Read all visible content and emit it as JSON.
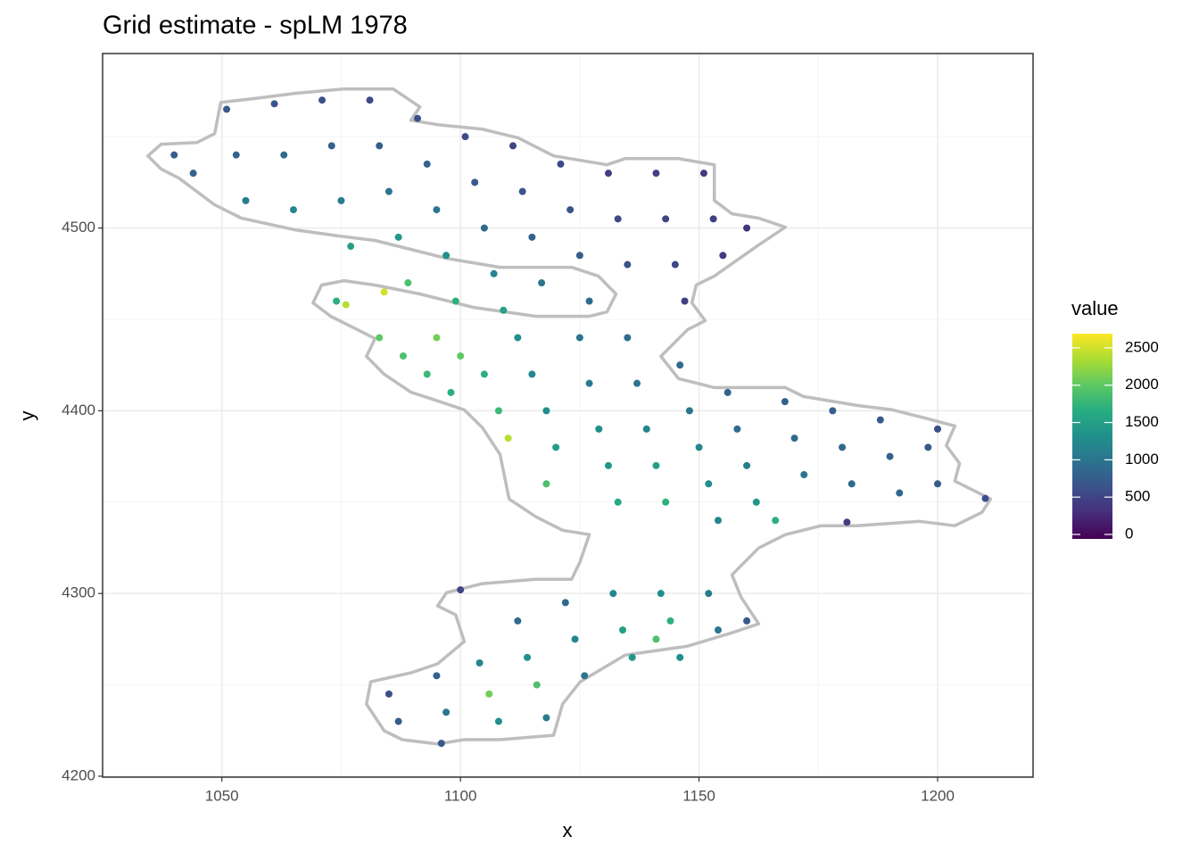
{
  "chart_data": {
    "type": "scatter",
    "title": "Grid estimate - spLM 1978",
    "x_label": "x",
    "y_label": "y",
    "xlim": [
      1025,
      1220
    ],
    "ylim": [
      4199.5,
      4595.5
    ],
    "xticks": [
      1050,
      1100,
      1150,
      1200
    ],
    "yticks": [
      4200,
      4300,
      4400,
      4500
    ],
    "grid": true,
    "outline_color": "#bebebe",
    "outline": {
      "x": [
        1049.8,
        1057.9,
        1065.3,
        1075.6,
        1085.9,
        1091.5,
        1089.6,
        1095.2,
        1104.6,
        1112.1,
        1119.5,
        1130.7,
        1134.5,
        1145.7,
        1153.2,
        1153.2,
        1156.9,
        1162.5,
        1168.1,
        1162.5,
        1153.2,
        1149.4,
        1148.5,
        1151.3,
        1147.6,
        1142.0,
        1145.7,
        1153.2,
        1168.1,
        1171.9,
        1183.1,
        1190.6,
        1198.0,
        1203.6,
        1201.8,
        1204.6,
        1203.6,
        1209.3,
        1211.1,
        1209.3,
        1203.6,
        1196.2,
        1183.1,
        1175.6,
        1168.1,
        1162.5,
        1156.9,
        1158.8,
        1162.5,
        1156.9,
        1147.6,
        1134.5,
        1125.1,
        1121.4,
        1119.5,
        1108.3,
        1100.8,
        1095.2,
        1087.8,
        1084.0,
        1080.3,
        1081.2,
        1089.6,
        1095.2,
        1100.8,
        1099.0,
        1095.2,
        1097.1,
        1104.6,
        1115.8,
        1123.3,
        1125.1,
        1127.0,
        1121.4,
        1115.8,
        1110.2,
        1108.3,
        1104.6,
        1100.8,
        1095.2,
        1089.6,
        1084.0,
        1080.3,
        1082.1,
        1078.4,
        1072.8,
        1069.1,
        1070.9,
        1075.6,
        1082.1,
        1091.5,
        1102.7,
        1115.8,
        1127.0,
        1130.7,
        1132.6,
        1128.9,
        1123.3,
        1108.3,
        1097.1,
        1089.6,
        1082.1,
        1074.7,
        1065.3,
        1054.1,
        1048.5,
        1041.0,
        1037.3,
        1034.5,
        1037.3,
        1044.8,
        1048.5,
        1049.4
      ],
      "y": [
        4568.8,
        4571.2,
        4573.7,
        4576.1,
        4576.1,
        4566.3,
        4559.0,
        4556.6,
        4554.1,
        4549.3,
        4539.5,
        4534.6,
        4538.0,
        4538.0,
        4534.6,
        4515.1,
        4507.8,
        4505.4,
        4500.5,
        4490.7,
        4473.7,
        4468.8,
        4459.0,
        4449.3,
        4444.4,
        4429.8,
        4417.6,
        4412.7,
        4412.7,
        4407.8,
        4402.9,
        4400.5,
        4395.6,
        4391.7,
        4381.0,
        4371.2,
        4361.5,
        4354.1,
        4351.7,
        4344.4,
        4337.1,
        4339.5,
        4337.1,
        4337.1,
        4332.2,
        4324.9,
        4310.2,
        4298.0,
        4283.4,
        4278.5,
        4271.2,
        4266.3,
        4251.7,
        4239.5,
        4222.4,
        4220.0,
        4220.0,
        4217.6,
        4220.0,
        4224.9,
        4239.5,
        4251.7,
        4256.6,
        4261.5,
        4273.7,
        4288.3,
        4293.2,
        4300.5,
        4305.4,
        4307.8,
        4307.8,
        4317.6,
        4332.2,
        4334.6,
        4342.0,
        4351.7,
        4376.1,
        4390.7,
        4400.5,
        4405.4,
        4410.2,
        4420.0,
        4429.8,
        4439.5,
        4444.4,
        4451.7,
        4459.0,
        4468.8,
        4471.2,
        4468.8,
        4463.9,
        4456.6,
        4451.7,
        4451.7,
        4454.1,
        4463.9,
        4473.7,
        4478.5,
        4478.5,
        4483.4,
        4488.3,
        4493.2,
        4495.6,
        4499.0,
        4505.4,
        4512.7,
        4527.3,
        4532.2,
        4539.5,
        4545.9,
        4546.8,
        4551.7,
        4563.9
      ]
    },
    "x": [
      1051,
      1053,
      1055,
      1061,
      1063,
      1065,
      1071,
      1073,
      1075,
      1077,
      1081,
      1083,
      1085,
      1087,
      1089,
      1091,
      1093,
      1095,
      1097,
      1099,
      1101,
      1103,
      1105,
      1107,
      1109,
      1111,
      1113,
      1115,
      1117,
      1121,
      1123,
      1125,
      1127,
      1131,
      1133,
      1135,
      1141,
      1143,
      1145,
      1147,
      1151,
      1153,
      1155,
      1160,
      1040,
      1044,
      1074,
      1076,
      1084,
      1083,
      1088,
      1093,
      1098,
      1095,
      1100,
      1105,
      1108,
      1110,
      1112,
      1115,
      1118,
      1120,
      1118,
      1125,
      1127,
      1129,
      1131,
      1133,
      1135,
      1137,
      1139,
      1141,
      1143,
      1146,
      1148,
      1150,
      1152,
      1154,
      1156,
      1158,
      1160,
      1162,
      1166,
      1168,
      1170,
      1172,
      1178,
      1180,
      1182,
      1181,
      1188,
      1190,
      1192,
      1198,
      1200,
      1210,
      1200,
      1085,
      1087,
      1095,
      1097,
      1096,
      1104,
      1106,
      1108,
      1112,
      1114,
      1116,
      1118,
      1100,
      1122,
      1124,
      1126,
      1132,
      1134,
      1136,
      1142,
      1144,
      1141,
      1146,
      1152,
      1154,
      1160
    ],
    "y": [
      4565,
      4540,
      4515,
      4568,
      4540,
      4510,
      4570,
      4545,
      4515,
      4490,
      4570,
      4545,
      4520,
      4495,
      4470,
      4560,
      4535,
      4510,
      4485,
      4460,
      4550,
      4525,
      4500,
      4475,
      4455,
      4545,
      4520,
      4495,
      4470,
      4535,
      4510,
      4485,
      4460,
      4530,
      4505,
      4480,
      4530,
      4505,
      4480,
      4460,
      4530,
      4505,
      4485,
      4500,
      4540,
      4530,
      4460,
      4458,
      4465,
      4440,
      4430,
      4420,
      4410,
      4440,
      4430,
      4420,
      4400,
      4385,
      4440,
      4420,
      4400,
      4380,
      4360,
      4440,
      4415,
      4390,
      4370,
      4350,
      4440,
      4415,
      4390,
      4370,
      4350,
      4425,
      4400,
      4380,
      4360,
      4340,
      4410,
      4390,
      4370,
      4350,
      4340,
      4405,
      4385,
      4365,
      4400,
      4380,
      4360,
      4339,
      4395,
      4375,
      4355,
      4380,
      4360,
      4352,
      4390,
      4245,
      4230,
      4255,
      4235,
      4218,
      4262,
      4245,
      4230,
      4285,
      4265,
      4250,
      4232,
      4302,
      4295,
      4275,
      4255,
      4300,
      4280,
      4265,
      4300,
      4285,
      4275,
      4265,
      4300,
      4280,
      4285
    ],
    "values": [
      700,
      800,
      1100,
      650,
      900,
      1200,
      600,
      800,
      1100,
      1500,
      550,
      750,
      1000,
      1400,
      1900,
      600,
      800,
      1000,
      1300,
      1700,
      550,
      700,
      900,
      1200,
      1500,
      500,
      650,
      800,
      1000,
      550,
      650,
      750,
      900,
      450,
      550,
      650,
      450,
      500,
      500,
      450,
      400,
      450,
      400,
      350,
      750,
      800,
      1700,
      2400,
      2500,
      2000,
      1900,
      1800,
      1700,
      2100,
      2000,
      1700,
      1800,
      2400,
      1300,
      1200,
      1300,
      1500,
      1900,
      1000,
      1100,
      1300,
      1400,
      1600,
      900,
      1000,
      1200,
      1500,
      1700,
      900,
      1000,
      1200,
      1300,
      1200,
      800,
      900,
      1100,
      1400,
      1700,
      800,
      900,
      1000,
      750,
      850,
      900,
      400,
      700,
      800,
      850,
      700,
      750,
      600,
      600,
      600,
      700,
      800,
      1000,
      700,
      1200,
      2100,
      1300,
      900,
      1300,
      1900,
      1100,
      500,
      900,
      1200,
      1000,
      1200,
      1500,
      1400,
      1300,
      1700,
      1900,
      1300,
      1100,
      1000,
      700
    ],
    "colorbar": {
      "title": "value",
      "lim": [
        -60,
        2690
      ],
      "ticks": [
        0,
        500,
        1000,
        1500,
        2000,
        2500
      ],
      "colors": [
        "#440154",
        "#472d7b",
        "#3b528b",
        "#2c728e",
        "#21908c",
        "#27ad81",
        "#5dc863",
        "#aadc32",
        "#fde725"
      ]
    }
  }
}
